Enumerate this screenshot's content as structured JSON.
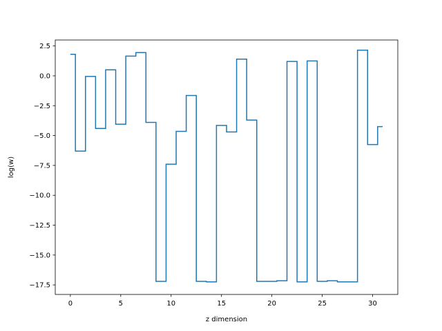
{
  "chart_data": {
    "type": "line",
    "drawstyle": "steps-mid",
    "title": "",
    "xlabel": "z dimension",
    "ylabel": "log(w)",
    "xlim": [
      -1.5,
      32.5
    ],
    "ylim": [
      -18.3,
      3.0
    ],
    "xticks": [
      0,
      5,
      10,
      15,
      20,
      25,
      30
    ],
    "xtick_labels": [
      "0",
      "5",
      "10",
      "15",
      "20",
      "25",
      "30"
    ],
    "yticks": [
      2.5,
      0.0,
      -2.5,
      -5.0,
      -7.5,
      -10.0,
      -12.5,
      -15.0,
      -17.5
    ],
    "ytick_labels": [
      "2.5",
      "0.0",
      "−2.5",
      "−5.0",
      "−7.5",
      "−10.0",
      "−12.5",
      "−15.0",
      "−17.5"
    ],
    "grid": false,
    "color": "#1f77b4",
    "x": [
      0,
      1,
      2,
      3,
      4,
      5,
      6,
      7,
      8,
      9,
      10,
      11,
      12,
      13,
      14,
      15,
      16,
      17,
      18,
      19,
      20,
      21,
      22,
      23,
      24,
      25,
      26,
      27,
      28,
      29,
      30,
      31
    ],
    "y": [
      1.8,
      -6.3,
      -0.05,
      -4.4,
      0.5,
      -4.05,
      1.65,
      1.95,
      -3.9,
      -17.2,
      -7.4,
      -4.65,
      -1.65,
      -17.2,
      -17.25,
      -4.15,
      -4.7,
      1.4,
      -3.7,
      -17.2,
      -17.2,
      -17.15,
      1.2,
      -17.25,
      1.25,
      -17.2,
      -17.15,
      -17.25,
      -17.25,
      2.15,
      -5.75,
      -4.25
    ]
  }
}
